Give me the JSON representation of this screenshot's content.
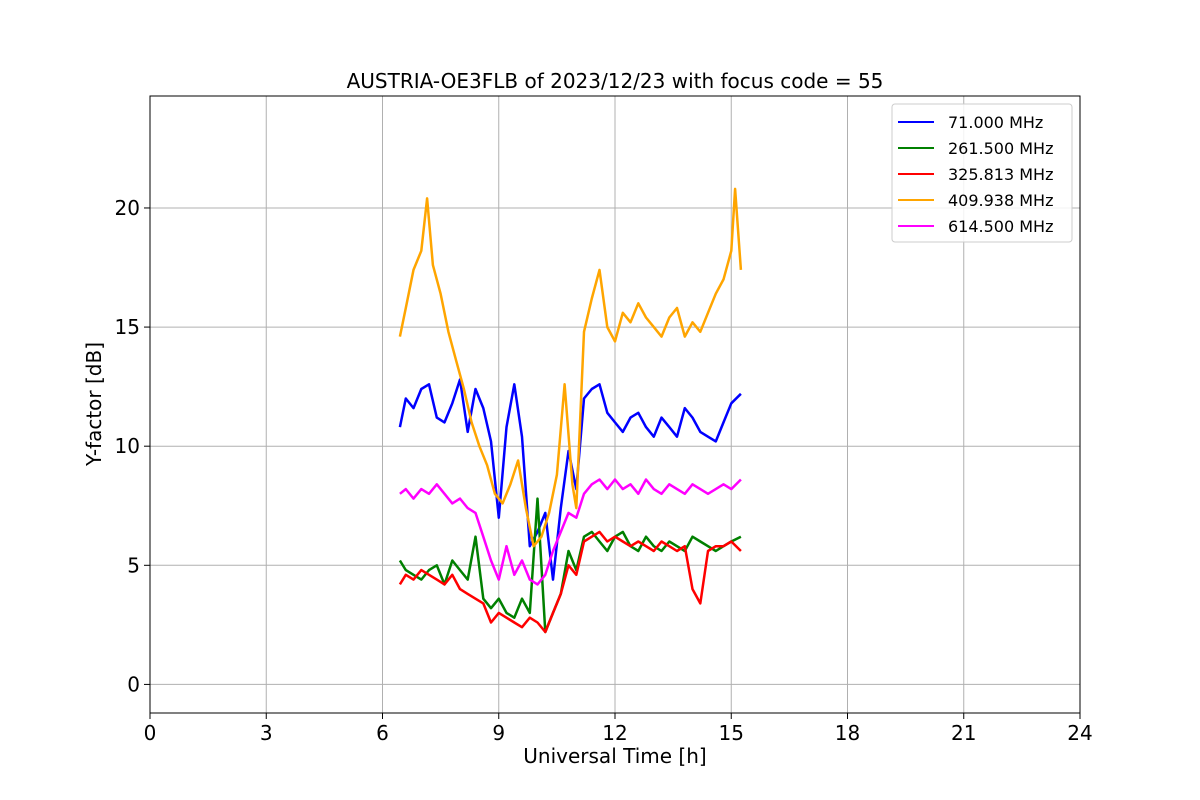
{
  "chart_data": {
    "type": "line",
    "title": "AUSTRIA-OE3FLB of 2023/12/23 with focus code = 55",
    "xlabel": "Universal Time [h]",
    "ylabel": "Y-factor [dB]",
    "xlim": [
      0,
      24
    ],
    "ylim": [
      -1.2,
      24.7
    ],
    "xticks": [
      0,
      3,
      6,
      9,
      12,
      15,
      18,
      21,
      24
    ],
    "yticks": [
      0,
      5,
      10,
      15,
      20
    ],
    "grid": true,
    "legend_position": "top-right",
    "series": [
      {
        "name": " 71.000 MHz",
        "color": "#0000ff",
        "x": [
          6.45,
          6.6,
          6.8,
          7.0,
          7.2,
          7.4,
          7.6,
          7.8,
          8.0,
          8.2,
          8.4,
          8.6,
          8.8,
          9.0,
          9.2,
          9.4,
          9.6,
          9.8,
          10.0,
          10.2,
          10.4,
          10.6,
          10.8,
          11.0,
          11.2,
          11.4,
          11.6,
          11.8,
          12.0,
          12.2,
          12.4,
          12.6,
          12.8,
          13.0,
          13.2,
          13.4,
          13.6,
          13.8,
          14.0,
          14.2,
          14.4,
          14.6,
          14.8,
          15.0,
          15.25
        ],
        "y": [
          10.8,
          12.0,
          11.6,
          12.4,
          12.6,
          11.2,
          11.0,
          11.8,
          12.8,
          10.6,
          12.4,
          11.6,
          10.2,
          7.0,
          10.8,
          12.6,
          10.4,
          5.8,
          6.4,
          7.2,
          4.4,
          7.4,
          9.8,
          8.2,
          12.0,
          12.4,
          12.6,
          11.4,
          11.0,
          10.6,
          11.2,
          11.4,
          10.8,
          10.4,
          11.2,
          10.8,
          10.4,
          11.6,
          11.2,
          10.6,
          10.4,
          10.2,
          11.0,
          11.8,
          12.2
        ]
      },
      {
        "name": " 261.500 MHz",
        "color": "#008000",
        "x": [
          6.45,
          6.6,
          6.8,
          7.0,
          7.2,
          7.4,
          7.6,
          7.8,
          8.0,
          8.2,
          8.4,
          8.6,
          8.8,
          9.0,
          9.2,
          9.4,
          9.6,
          9.8,
          10.0,
          10.2,
          10.4,
          10.6,
          10.8,
          11.0,
          11.2,
          11.4,
          11.6,
          11.8,
          12.0,
          12.2,
          12.4,
          12.6,
          12.8,
          13.0,
          13.2,
          13.4,
          13.6,
          13.8,
          14.0,
          14.2,
          14.4,
          14.6,
          14.8,
          15.0,
          15.25
        ],
        "y": [
          5.2,
          4.8,
          4.6,
          4.4,
          4.8,
          5.0,
          4.2,
          5.2,
          4.8,
          4.4,
          6.2,
          3.6,
          3.2,
          3.6,
          3.0,
          2.8,
          3.6,
          3.0,
          7.8,
          2.2,
          3.0,
          3.8,
          5.6,
          4.8,
          6.2,
          6.4,
          6.0,
          5.6,
          6.2,
          6.4,
          5.8,
          5.6,
          6.2,
          5.8,
          5.6,
          6.0,
          5.8,
          5.6,
          6.2,
          6.0,
          5.8,
          5.6,
          5.8,
          6.0,
          6.2
        ]
      },
      {
        "name": " 325.813 MHz",
        "color": "#ff0000",
        "x": [
          6.45,
          6.6,
          6.8,
          7.0,
          7.2,
          7.4,
          7.6,
          7.8,
          8.0,
          8.2,
          8.4,
          8.6,
          8.8,
          9.0,
          9.2,
          9.4,
          9.6,
          9.8,
          10.0,
          10.2,
          10.4,
          10.6,
          10.8,
          11.0,
          11.2,
          11.4,
          11.6,
          11.8,
          12.0,
          12.2,
          12.4,
          12.6,
          12.8,
          13.0,
          13.2,
          13.4,
          13.6,
          13.8,
          14.0,
          14.2,
          14.4,
          14.6,
          14.8,
          15.0,
          15.25
        ],
        "y": [
          4.2,
          4.6,
          4.4,
          4.8,
          4.6,
          4.4,
          4.2,
          4.6,
          4.0,
          3.8,
          3.6,
          3.4,
          2.6,
          3.0,
          2.8,
          2.6,
          2.4,
          2.8,
          2.6,
          2.2,
          3.0,
          3.8,
          5.0,
          4.6,
          6.0,
          6.2,
          6.4,
          6.0,
          6.2,
          6.0,
          5.8,
          6.0,
          5.8,
          5.6,
          6.0,
          5.8,
          5.6,
          5.8,
          4.0,
          3.4,
          5.6,
          5.8,
          5.8,
          6.0,
          5.6
        ]
      },
      {
        "name": " 409.938 MHz",
        "color": "#ffa500",
        "x": [
          6.45,
          6.6,
          6.8,
          7.0,
          7.15,
          7.3,
          7.5,
          7.7,
          7.9,
          8.1,
          8.3,
          8.5,
          8.7,
          8.9,
          9.1,
          9.3,
          9.5,
          9.7,
          9.9,
          10.1,
          10.3,
          10.5,
          10.7,
          10.9,
          11.0,
          11.2,
          11.4,
          11.6,
          11.8,
          12.0,
          12.2,
          12.4,
          12.6,
          12.8,
          13.0,
          13.2,
          13.4,
          13.6,
          13.8,
          14.0,
          14.2,
          14.4,
          14.6,
          14.8,
          15.0,
          15.1,
          15.25
        ],
        "y": [
          14.6,
          15.8,
          17.4,
          18.2,
          20.4,
          17.6,
          16.4,
          14.8,
          13.6,
          12.4,
          11.0,
          10.0,
          9.2,
          8.0,
          7.6,
          8.4,
          9.4,
          7.4,
          5.8,
          6.2,
          7.2,
          8.8,
          12.6,
          8.4,
          7.4,
          14.8,
          16.2,
          17.4,
          15.0,
          14.4,
          15.6,
          15.2,
          16.0,
          15.4,
          15.0,
          14.6,
          15.4,
          15.8,
          14.6,
          15.2,
          14.8,
          15.6,
          16.4,
          17.0,
          18.2,
          20.8,
          17.4
        ]
      },
      {
        "name": " 614.500 MHz",
        "color": "#ff00ff",
        "x": [
          6.45,
          6.6,
          6.8,
          7.0,
          7.2,
          7.4,
          7.6,
          7.8,
          8.0,
          8.2,
          8.4,
          8.6,
          8.8,
          9.0,
          9.2,
          9.4,
          9.6,
          9.8,
          10.0,
          10.2,
          10.4,
          10.6,
          10.8,
          11.0,
          11.2,
          11.4,
          11.6,
          11.8,
          12.0,
          12.2,
          12.4,
          12.6,
          12.8,
          13.0,
          13.2,
          13.4,
          13.6,
          13.8,
          14.0,
          14.2,
          14.4,
          14.6,
          14.8,
          15.0,
          15.25
        ],
        "y": [
          8.0,
          8.2,
          7.8,
          8.2,
          8.0,
          8.4,
          8.0,
          7.6,
          7.8,
          7.4,
          7.2,
          6.2,
          5.2,
          4.4,
          5.8,
          4.6,
          5.2,
          4.4,
          4.2,
          4.6,
          5.6,
          6.4,
          7.2,
          7.0,
          8.0,
          8.4,
          8.6,
          8.2,
          8.6,
          8.2,
          8.4,
          8.0,
          8.6,
          8.2,
          8.0,
          8.4,
          8.2,
          8.0,
          8.4,
          8.2,
          8.0,
          8.2,
          8.4,
          8.2,
          8.6
        ]
      }
    ]
  }
}
